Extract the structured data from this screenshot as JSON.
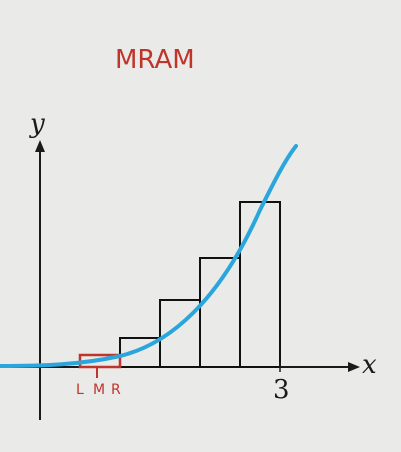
{
  "annotation": {
    "title": "MRAM",
    "ink_color": "#c0352b"
  },
  "axes": {
    "x_label": "x",
    "y_label": "y",
    "x_tick": "3",
    "color": "#1a1a1a"
  },
  "curve": {
    "color": "#2aa6dc"
  },
  "rectangles": {
    "stroke": "#111111",
    "highlight_stroke": "#c0352b"
  },
  "subinterval_labels": [
    "L",
    "M",
    "R"
  ],
  "chart_data": {
    "type": "diagram",
    "function_shape": "increasing cubic-like curve starting at origin",
    "x_range": [
      0,
      3
    ],
    "rectangle_count": 6,
    "method": "MRAM",
    "marked_subinterval_labels": [
      "L",
      "M",
      "R"
    ]
  }
}
